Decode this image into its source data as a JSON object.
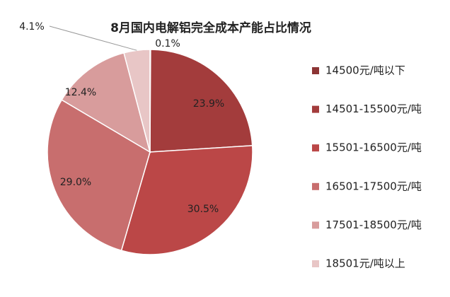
{
  "chart_data": {
    "type": "pie",
    "title": "8月国内电解铝完全成本产能占比情况",
    "categories": [
      "14500元/吨以下",
      "14501-15500元/吨",
      "15501-16500元/吨",
      "16501-17500元/吨",
      "17501-18500元/吨",
      "18501元/吨以上"
    ],
    "values": [
      0.1,
      23.9,
      30.5,
      29.0,
      12.4,
      4.1
    ],
    "value_labels": [
      "0.1%",
      "23.9%",
      "30.5%",
      "29.0%",
      "12.4%",
      "4.1%"
    ],
    "colors": [
      "#8c3434",
      "#a33c3c",
      "#bb4747",
      "#c86e6e",
      "#d89c9c",
      "#e8c6c6"
    ],
    "legend": "right"
  }
}
